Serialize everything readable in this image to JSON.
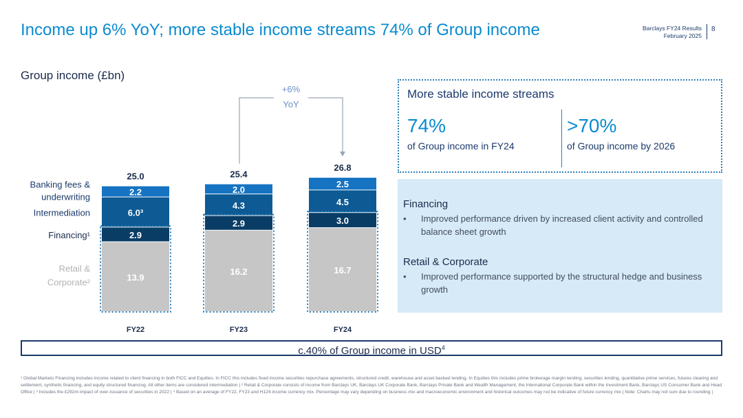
{
  "header": {
    "title": "Income up 6% YoY; more stable income streams 74% of Group income",
    "doc_title": "Barclays FY24 Results",
    "doc_date": "February 2025",
    "page_number": "8"
  },
  "chart_title": "Group income (£bn)",
  "chart_data": {
    "type": "bar",
    "stacked": true,
    "title": "Group income (£bn)",
    "categories": [
      "FY22",
      "FY23",
      "FY24"
    ],
    "series": [
      {
        "name": "Retail & Corporate",
        "superscript": "2",
        "values": [
          13.9,
          16.2,
          16.7
        ],
        "labels": [
          "13.9",
          "16.2",
          "16.7"
        ],
        "color": "#c6c6c6",
        "text_color": "#ffffff",
        "label_color": "#b3b3b3"
      },
      {
        "name": "Financing",
        "superscript": "1",
        "values": [
          2.9,
          2.9,
          3.0
        ],
        "labels": [
          "2.9",
          "2.9",
          "3.0"
        ],
        "color": "#0a3d66",
        "text_color": "#ffffff",
        "label_color": "#1b2b4b"
      },
      {
        "name": "Intermediation",
        "superscript": "",
        "values": [
          6.0,
          4.3,
          4.5
        ],
        "labels": [
          "6.0³",
          "4.3",
          "4.5"
        ],
        "color": "#0d5a94",
        "text_color": "#ffffff",
        "label_color": "#1b3a6b"
      },
      {
        "name": "Banking fees & underwriting",
        "superscript": "",
        "values": [
          2.2,
          2.0,
          2.5
        ],
        "labels": [
          "2.2",
          "2.0",
          "2.5"
        ],
        "color": "#1573c2",
        "text_color": "#ffffff",
        "label_color": "#1b3a6b"
      }
    ],
    "totals": [
      "25.0",
      "25.4",
      "26.8"
    ],
    "series_labels": {
      "banking_line1": "Banking fees &",
      "banking_line2": "underwriting",
      "intermediation": "Intermediation",
      "financing": "Financing¹",
      "retail_line1": "Retail &",
      "retail_line2": "Corporate²"
    },
    "annotation": {
      "line1": "+6%",
      "line2": "YoY"
    },
    "highlight": "Financing and Retail & Corporate outlined as more stable income streams"
  },
  "stable_streams": {
    "title": "More stable income streams",
    "stat1_value": "74%",
    "stat1_label": "of Group income in FY24",
    "stat2_value": ">70%",
    "stat2_label": "of Group income by 2026"
  },
  "info": {
    "financing_title": "Financing",
    "financing_bullet": "Improved performance driven by increased client activity and controlled balance sheet growth",
    "retail_title": "Retail & Corporate",
    "retail_bullet": "Improved performance supported by the structural hedge and business growth",
    "bullet_symbol": "•"
  },
  "usd_note": "c.40% of Group income in USD",
  "usd_note_sup": "4",
  "footnote": "¹ Global Markets Financing includes income related to client financing in both FICC and Equities. In FICC this includes fixed income securities repurchase agreements, structured credit, warehouse and asset backed lending. In Equities this includes prime brokerage margin lending, securities lending, quantitative prime services, futures clearing and settlement, synthetic financing, and equity structured financing. All other items are considered intermediation | ² Retail & Corporate consists of income from Barclays UK, Barclays UK Corporate Bank, Barclays Private Bank and Wealth Management, the International Corporate Bank within the Investment Bank, Barclays US Consumer Bank and Head Office | ³ Includes the £292m impact of over-issuance of securities in 2022 | ⁴ Based on an average of FY22, FY23 and H124 income currency mix. Percentage may vary depending on business mix and macroeconomic environment and historical outcomes may not be indicative of future currency mix | Note: Charts may not sum due to rounding |"
}
